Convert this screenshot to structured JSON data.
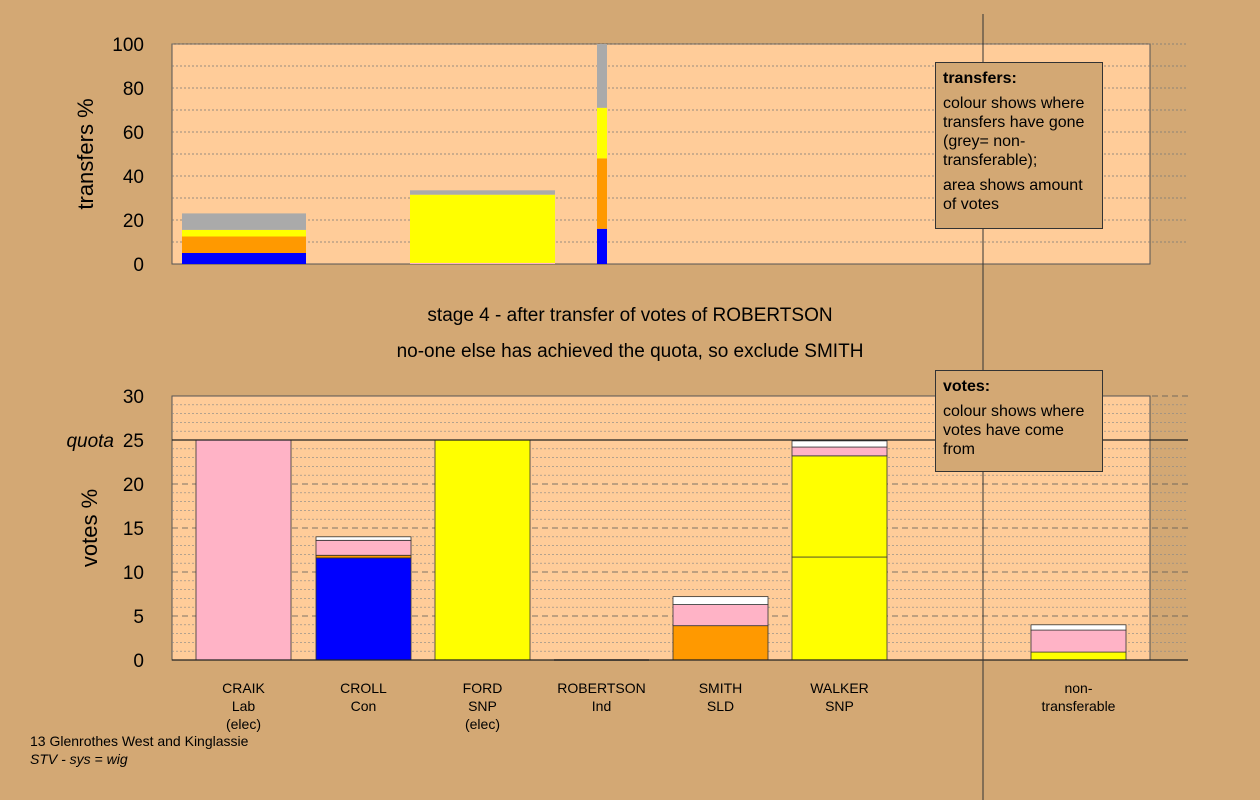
{
  "colors": {
    "background": "#D3A874",
    "plot_bg": "#FFCC99",
    "Lab": "#FFB3C6",
    "Con": "#0000FF",
    "SNP": "#FFFF00",
    "SLD": "#FF9900",
    "nontransferable": "#AAAAAA",
    "white": "#FFFFFF"
  },
  "headings": {
    "line1": "stage 4 - after transfer of votes of ROBERTSON",
    "line2": "no-one else has achieved the quota, so exclude SMITH"
  },
  "legend_transfers": {
    "title": "transfers:",
    "p1": "colour shows where transfers have gone (grey= non-transferable);",
    "p2": "area shows amount of votes"
  },
  "legend_votes": {
    "title": "votes:",
    "p1": "colour shows where votes have come from"
  },
  "footer": {
    "line1": "13 Glenrothes West and Kinglassie",
    "line2": "STV - sys = wig"
  },
  "chart_data": [
    {
      "type": "bar",
      "name": "transfers",
      "ylabel": "transfers %",
      "ylim": [
        0,
        100
      ],
      "yticks": [
        0,
        20,
        40,
        60,
        80,
        100
      ],
      "bars": [
        {
          "segments": [
            {
              "color": "Con",
              "value": 5
            },
            {
              "color": "SLD",
              "value": 7.5
            },
            {
              "color": "SNP",
              "value": 3
            },
            {
              "color": "nontransferable",
              "value": 7.5
            }
          ]
        },
        {
          "segments": [
            {
              "color": "Lab",
              "value": 0.5
            },
            {
              "color": "SNP",
              "value": 31
            },
            {
              "color": "nontransferable",
              "value": 2
            }
          ]
        },
        {
          "segments": [
            {
              "color": "Con",
              "value": 16
            },
            {
              "color": "SLD",
              "value": 32
            },
            {
              "color": "SNP",
              "value": 23
            },
            {
              "color": "nontransferable",
              "value": 29
            }
          ]
        }
      ]
    },
    {
      "type": "bar",
      "name": "votes",
      "ylabel": "votes %",
      "ylim": [
        0,
        30
      ],
      "yticks": [
        0,
        5,
        10,
        15,
        20,
        25,
        30
      ],
      "quota": 25,
      "quota_label": "quota",
      "categories": [
        {
          "name": "CRAIK",
          "party": "Lab",
          "note": "(elec)"
        },
        {
          "name": "CROLL",
          "party": "Con",
          "note": ""
        },
        {
          "name": "FORD",
          "party": "SNP",
          "note": "(elec)"
        },
        {
          "name": "ROBERTSON",
          "party": "Ind",
          "note": ""
        },
        {
          "name": "SMITH",
          "party": "SLD",
          "note": ""
        },
        {
          "name": "WALKER",
          "party": "SNP",
          "note": ""
        },
        {
          "name": "non-",
          "party": "transferable",
          "note": ""
        }
      ],
      "bars": [
        {
          "segments": [
            {
              "color": "Lab",
              "value": 25
            }
          ]
        },
        {
          "segments": [
            {
              "color": "Con",
              "value": 11.6
            },
            {
              "color": "SLD",
              "value": 0.3
            },
            {
              "color": "Lab",
              "value": 1.7
            },
            {
              "color": "white",
              "value": 0.4
            }
          ]
        },
        {
          "segments": [
            {
              "color": "SNP",
              "value": 25
            }
          ]
        },
        {
          "segments": []
        },
        {
          "segments": [
            {
              "color": "SLD",
              "value": 3.9
            },
            {
              "color": "Lab",
              "value": 2.4
            },
            {
              "color": "white",
              "value": 0.9
            }
          ]
        },
        {
          "segments": [
            {
              "color": "SNP",
              "value": 11.7
            },
            {
              "color": "SNP",
              "value": 11.5
            },
            {
              "color": "Lab",
              "value": 1.0
            },
            {
              "color": "white",
              "value": 0.7
            }
          ]
        },
        {
          "segments": [
            {
              "color": "SNP",
              "value": 0.9
            },
            {
              "color": "Lab",
              "value": 2.5
            },
            {
              "color": "white",
              "value": 0.6
            }
          ]
        }
      ]
    }
  ]
}
